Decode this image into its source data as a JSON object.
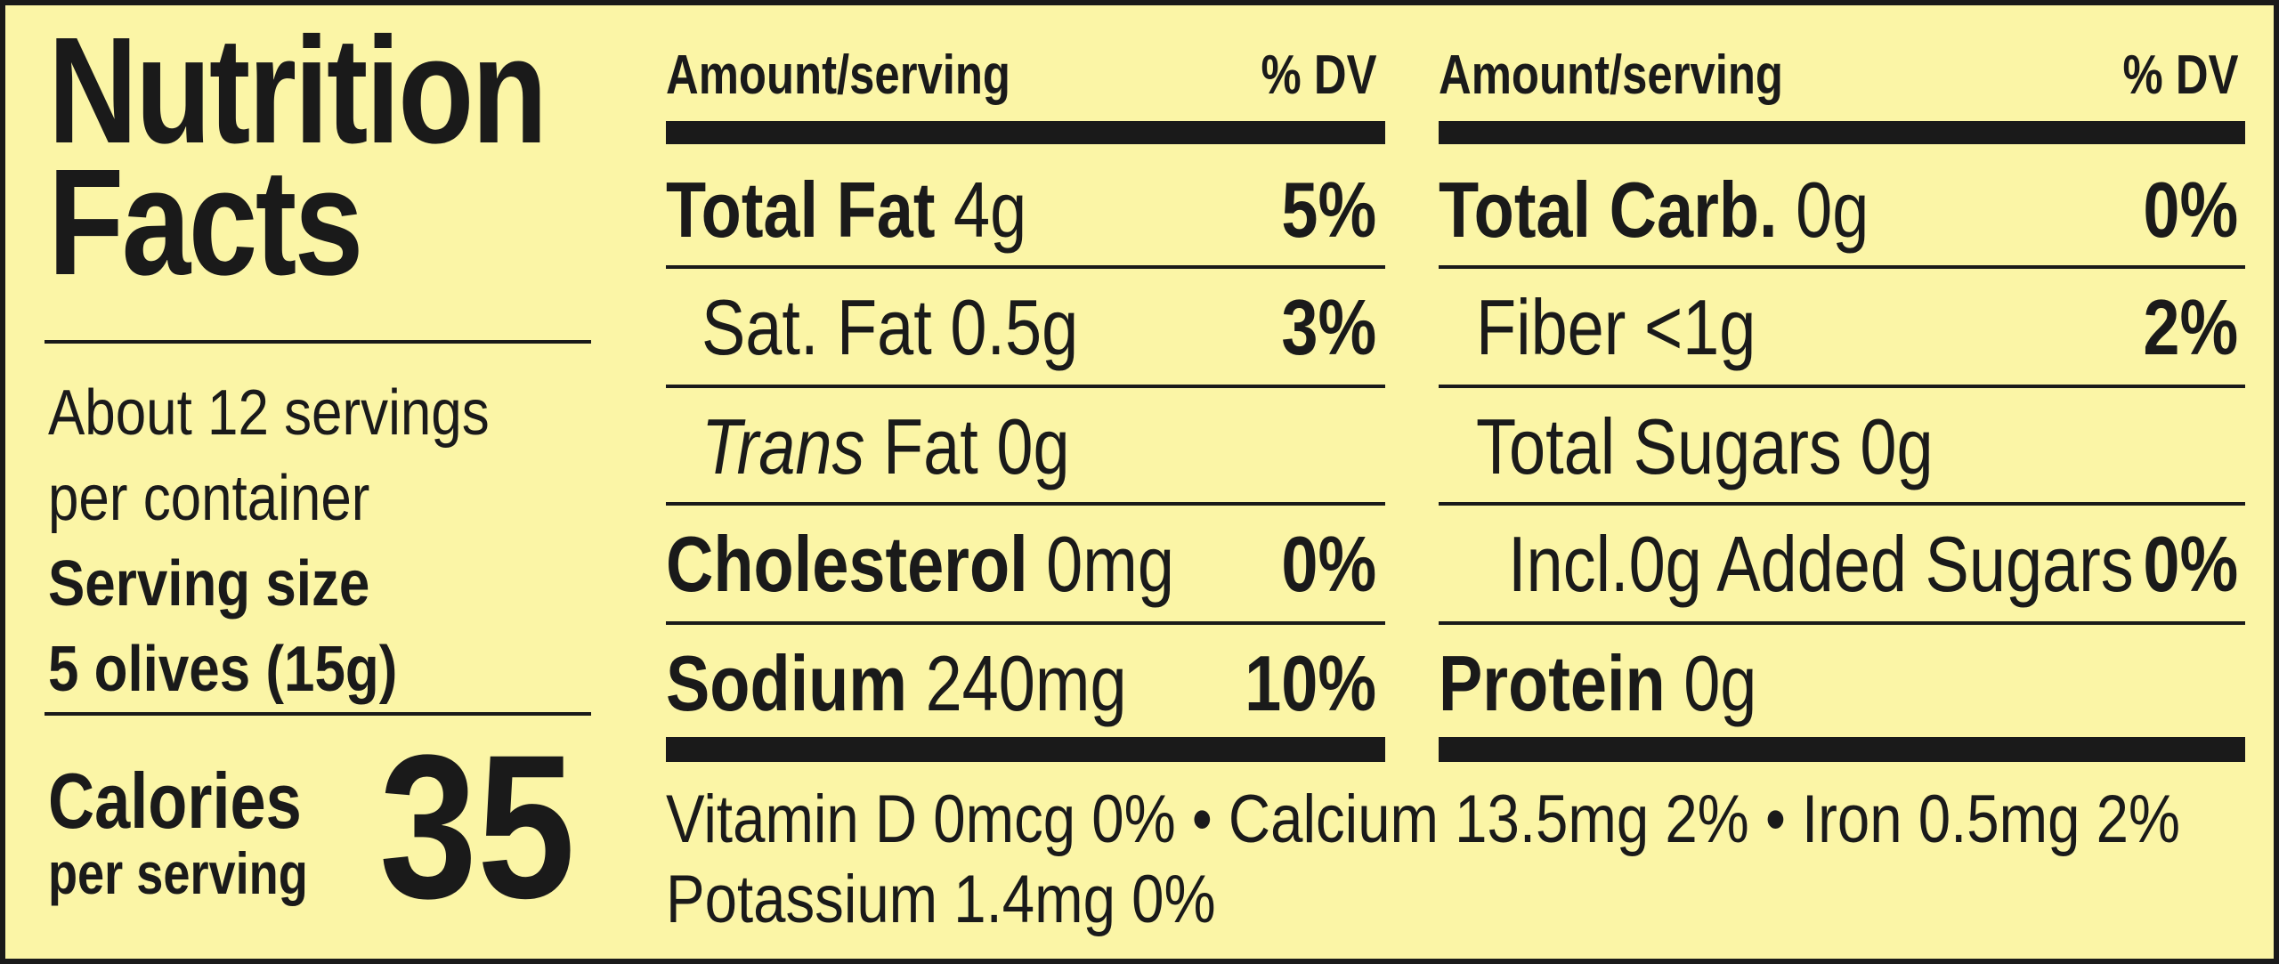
{
  "title": {
    "line1": "Nutrition",
    "line2": "Facts"
  },
  "servings": {
    "per_container_line1": "About 12 servings",
    "per_container_line2": "per container",
    "size_label": "Serving size",
    "size_value": "5 olives (15g)"
  },
  "calories": {
    "label": "Calories",
    "sublabel": "per serving",
    "value": "35"
  },
  "columns": {
    "amount_header": "Amount/serving",
    "dv_header": "% DV"
  },
  "left_nutrients": [
    {
      "name": "Total Fat",
      "amount": "4g",
      "dv": "5%"
    },
    {
      "name": "Sat. Fat",
      "amount": "0.5g",
      "dv": "3%"
    },
    {
      "name": "Trans",
      "name_rest": "Fat",
      "amount": "0g",
      "dv": ""
    },
    {
      "name": "Cholesterol",
      "amount": "0mg",
      "dv": "0%"
    },
    {
      "name": "Sodium",
      "amount": "240mg",
      "dv": "10%"
    }
  ],
  "right_nutrients": [
    {
      "name": "Total Carb.",
      "amount": "0g",
      "dv": "0%"
    },
    {
      "name": "Fiber",
      "amount": "<1g",
      "dv": "2%"
    },
    {
      "name": "Total Sugars",
      "amount": "0g",
      "dv": ""
    },
    {
      "name": "Incl.",
      "amount": "0g Added Sugars",
      "dv": "0%"
    },
    {
      "name": "Protein",
      "amount": "0g",
      "dv": ""
    }
  ],
  "vitamins": {
    "line1": "Vitamin D 0mcg 0% • Calcium 13.5mg 2% • Iron 0.5mg 2%",
    "line2": "Potassium 1.4mg 0%"
  },
  "colors": {
    "background": "#fbf5a6",
    "ink": "#1a1a1a"
  }
}
